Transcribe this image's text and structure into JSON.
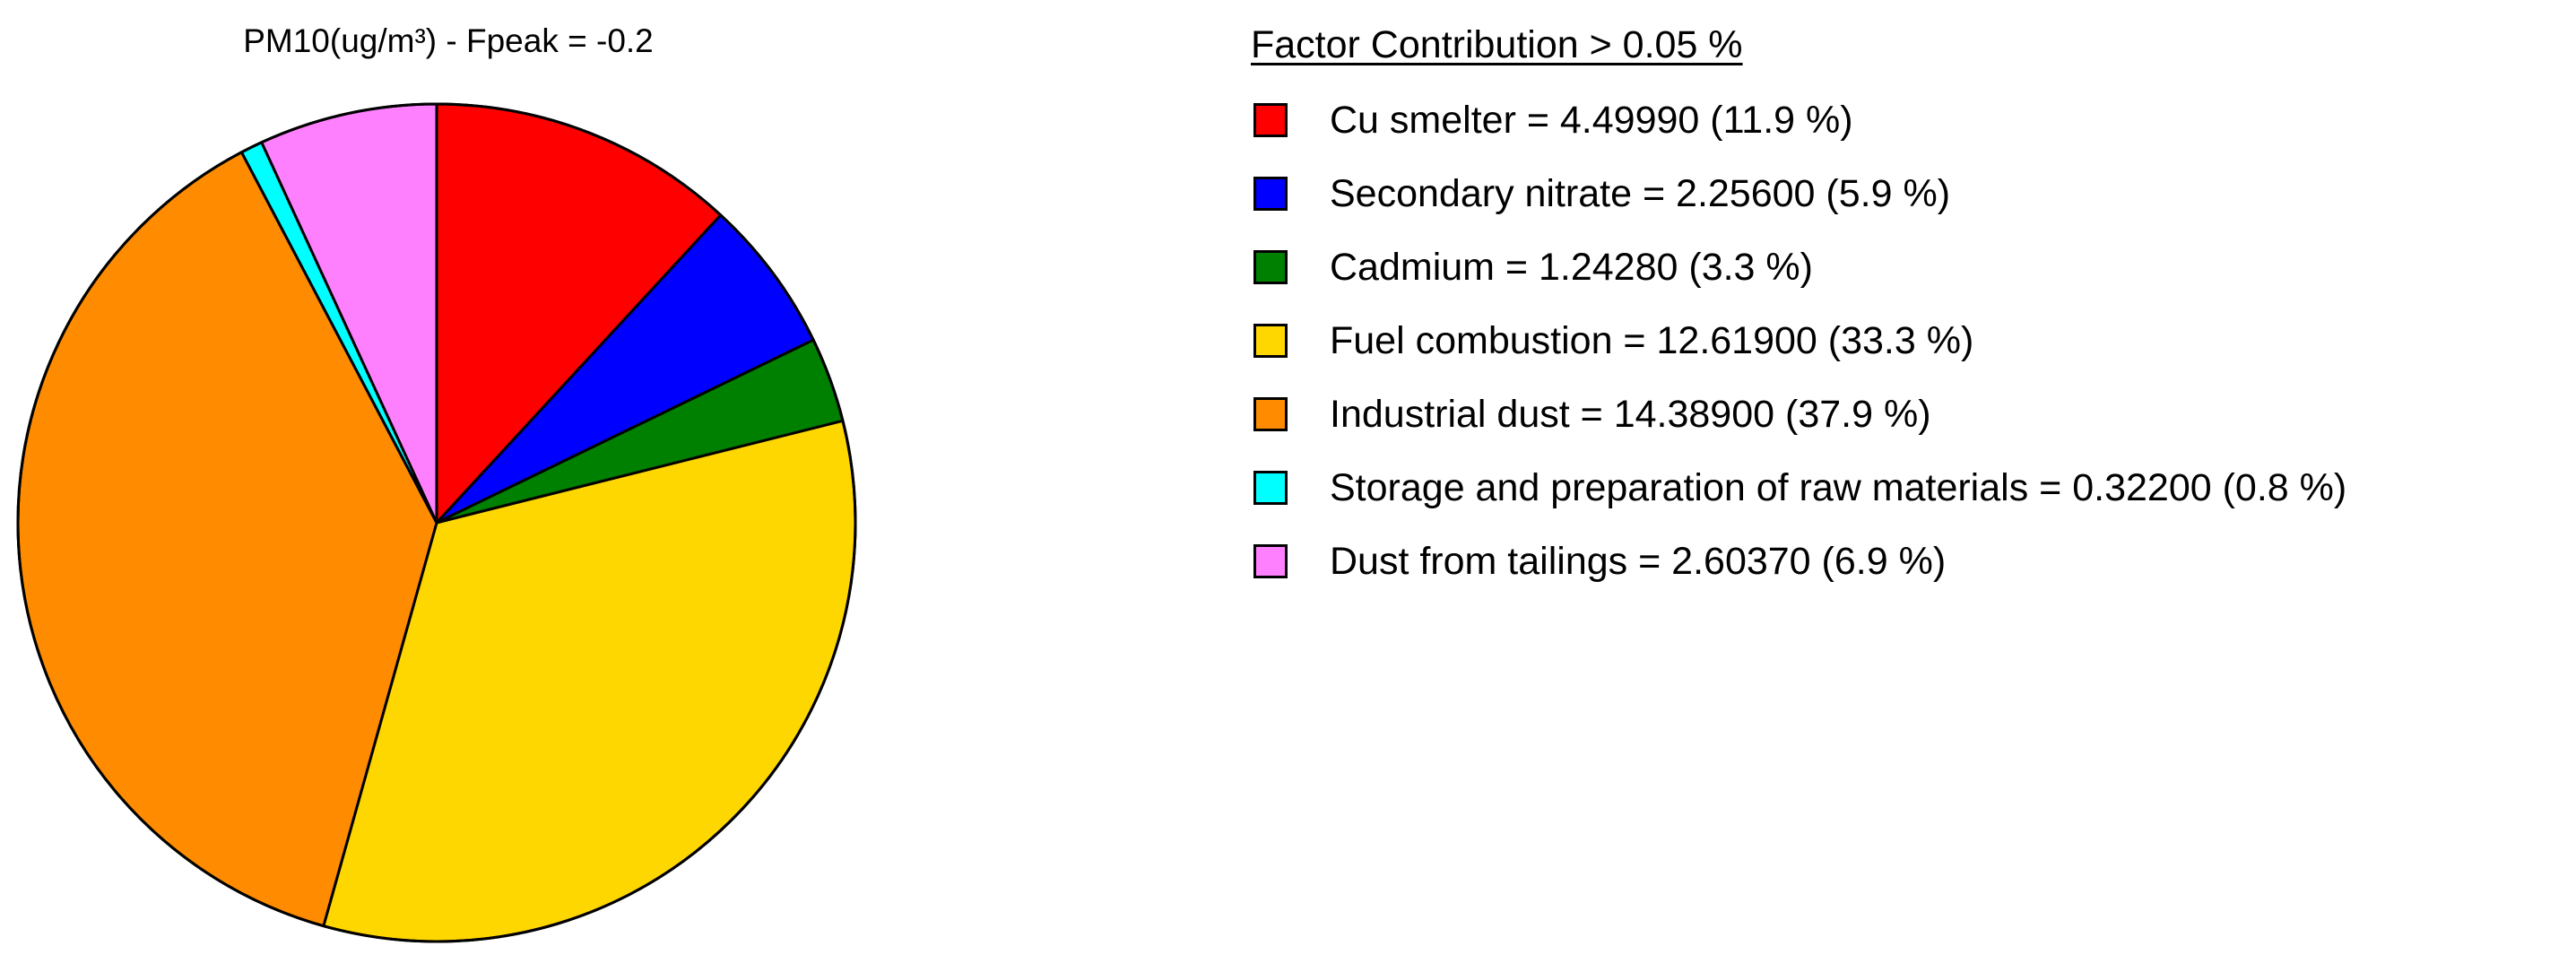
{
  "chart_data": {
    "type": "pie",
    "title": "PM10(ug/m³) - Fpeak = -0.2",
    "legend_title": "Factor Contribution > 0.05 %",
    "legend_position": "right",
    "slices": [
      {
        "name": "Cu smelter",
        "value": 4.4999,
        "percent": 11.9,
        "color": "#ff0000",
        "label": "Cu smelter = 4.49990  (11.9 %)"
      },
      {
        "name": "Secondary nitrate",
        "value": 2.256,
        "percent": 5.9,
        "color": "#0000ff",
        "label": "Secondary nitrate = 2.25600  (5.9 %)"
      },
      {
        "name": "Cadmium",
        "value": 1.2428,
        "percent": 3.3,
        "color": "#008000",
        "label": "Cadmium = 1.24280  (3.3 %)"
      },
      {
        "name": "Fuel combustion",
        "value": 12.619,
        "percent": 33.3,
        "color": "#ffd700",
        "label": "Fuel combustion = 12.61900  (33.3 %)"
      },
      {
        "name": "Industrial dust",
        "value": 14.389,
        "percent": 37.9,
        "color": "#ff8c00",
        "label": "Industrial dust = 14.38900  (37.9 %)"
      },
      {
        "name": "Storage and preparation of raw materials",
        "value": 0.322,
        "percent": 0.8,
        "color": "#00ffff",
        "label": "Storage and preparation of raw materials = 0.32200  (0.8 %)"
      },
      {
        "name": "Dust from tailings",
        "value": 2.6037,
        "percent": 6.9,
        "color": "#ff80ff",
        "label": "Dust from tailings = 2.60370  (6.9 %)"
      }
    ]
  }
}
